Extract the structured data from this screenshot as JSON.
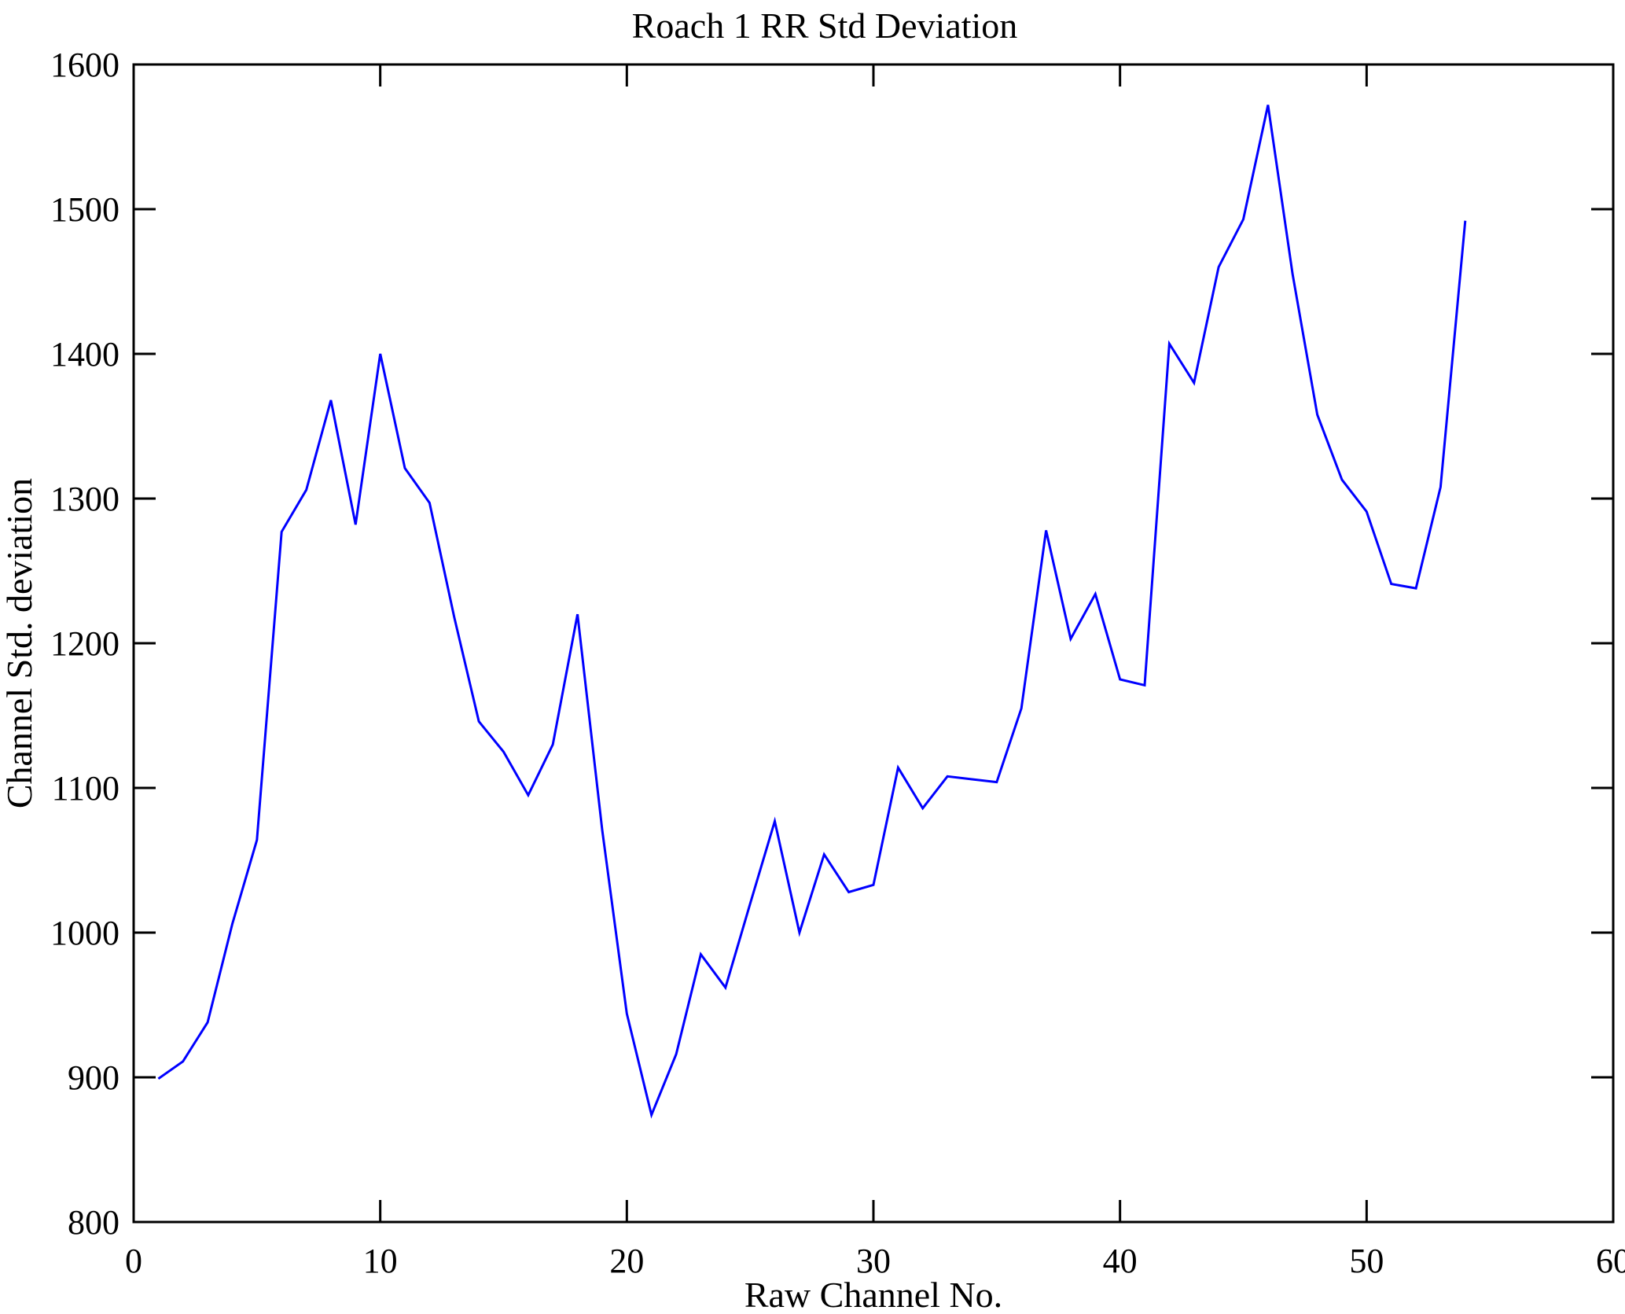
{
  "figure": {
    "background_color": "#ffffff",
    "axis_color": "#000000"
  },
  "chart_data": {
    "type": "line",
    "title": "Roach 1 RR Std Deviation",
    "xlabel": "Raw Channel No.",
    "ylabel": "Channel Std. deviation",
    "xlim": [
      0,
      60
    ],
    "ylim": [
      800,
      1600
    ],
    "x_ticks": [
      0,
      10,
      20,
      30,
      40,
      50,
      60
    ],
    "y_ticks": [
      800,
      900,
      1000,
      1100,
      1200,
      1300,
      1400,
      1500,
      1600
    ],
    "grid": false,
    "legend": null,
    "line_color": "#0000ff",
    "line_width": 3,
    "x": [
      1,
      2,
      3,
      4,
      5,
      6,
      7,
      8,
      9,
      10,
      11,
      12,
      13,
      14,
      15,
      16,
      17,
      18,
      19,
      20,
      21,
      22,
      23,
      24,
      25,
      26,
      27,
      28,
      29,
      30,
      31,
      32,
      33,
      34,
      35,
      36,
      37,
      38,
      39,
      40,
      41,
      42,
      43,
      44,
      45,
      46,
      47,
      48,
      49,
      50,
      51,
      52,
      53,
      54
    ],
    "values": [
      899,
      911,
      938,
      1006,
      1064,
      1277,
      1306,
      1368,
      1282,
      1400,
      1321,
      1297,
      1218,
      1146,
      1125,
      1095,
      1130,
      1220,
      1071,
      944,
      874,
      916,
      985,
      962,
      1020,
      1077,
      1000,
      1054,
      1028,
      1033,
      1114,
      1086,
      1108,
      1106,
      1104,
      1155,
      1278,
      1203,
      1234,
      1175,
      1171,
      1407,
      1380,
      1460,
      1493,
      1572,
      1455,
      1358,
      1313,
      1291,
      1241,
      1238,
      1308,
      1492
    ]
  }
}
